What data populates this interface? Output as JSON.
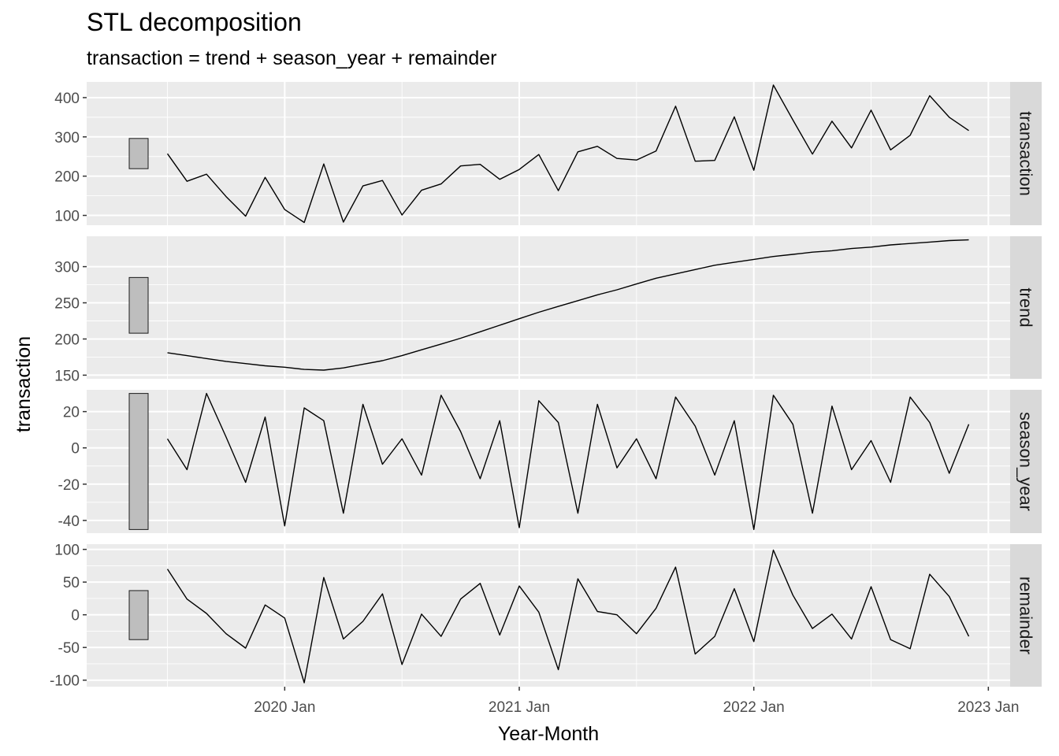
{
  "chart_data": {
    "type": "line",
    "title": "STL decomposition",
    "subtitle": "transaction = trend + season_year + remainder",
    "xlabel": "Year-Month",
    "ylabel": "transaction",
    "x_start": "2019 Jul",
    "x_ticks": [
      "2020 Jan",
      "2021 Jan",
      "2022 Jan",
      "2023 Jan"
    ],
    "grid": true,
    "legend": "none",
    "panels": [
      {
        "name": "transaction",
        "ylim": [
          75,
          440
        ],
        "yticks": [
          100,
          200,
          300,
          400
        ],
        "scale_bar": [
          219,
          296
        ],
        "values": [
          257,
          187,
          205,
          148,
          98,
          197,
          115,
          82,
          231,
          83,
          175,
          189,
          101,
          164,
          180,
          226,
          230,
          192,
          217,
          255,
          163,
          262,
          276,
          245,
          241,
          264,
          378,
          238,
          240,
          351,
          215,
          432,
          343,
          256,
          340,
          272,
          368,
          267,
          304,
          405,
          350,
          316
        ]
      },
      {
        "name": "trend",
        "ylim": [
          145,
          342
        ],
        "yticks": [
          150,
          200,
          250,
          300
        ],
        "scale_bar": [
          208,
          285
        ],
        "values": [
          181,
          177,
          173,
          169,
          166,
          163,
          161,
          158,
          157,
          160,
          165,
          170,
          177,
          185,
          193,
          201,
          210,
          219,
          228,
          237,
          245,
          253,
          261,
          268,
          276,
          284,
          290,
          296,
          302,
          306,
          310,
          314,
          317,
          320,
          322,
          325,
          327,
          330,
          332,
          334,
          336,
          337
        ]
      },
      {
        "name": "season_year",
        "ylim": [
          -47,
          32
        ],
        "yticks": [
          -40,
          -20,
          0,
          20
        ],
        "scale_bar": [
          -45,
          30
        ],
        "values": [
          5,
          -12,
          30,
          6,
          -19,
          17,
          -43,
          22,
          15,
          -36,
          24,
          -9,
          5,
          -15,
          29,
          9,
          -17,
          15,
          -44,
          26,
          14,
          -36,
          24,
          -11,
          5,
          -17,
          28,
          12,
          -15,
          15,
          -45,
          29,
          13,
          -36,
          23,
          -12,
          4,
          -19,
          28,
          14,
          -14,
          13
        ]
      },
      {
        "name": "remainder",
        "ylim": [
          -110,
          108
        ],
        "yticks": [
          -100,
          -50,
          0,
          50,
          100
        ],
        "scale_bar": [
          -38,
          37
        ],
        "values": [
          70,
          24,
          2,
          -29,
          -51,
          15,
          -5,
          -104,
          57,
          -37,
          -10,
          32,
          -76,
          1,
          -33,
          24,
          48,
          -31,
          44,
          4,
          -84,
          55,
          5,
          0,
          -29,
          10,
          73,
          -60,
          -33,
          40,
          -41,
          99,
          30,
          -21,
          1,
          -37,
          43,
          -38,
          -52,
          62,
          28,
          -33
        ]
      }
    ]
  }
}
